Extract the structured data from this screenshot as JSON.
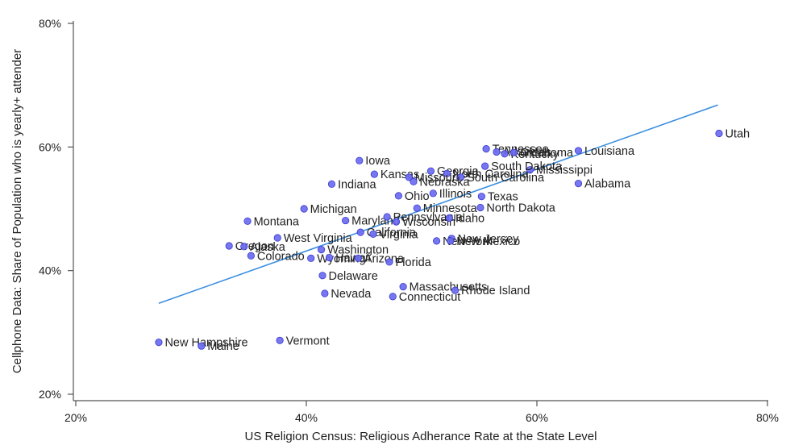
{
  "chart_data": {
    "type": "scatter",
    "xlabel": "US Religion Census: Religious Adherance Rate at the State Level",
    "ylabel": "Cellphone Data: Share of Population who is yearly+ attender",
    "xlim": [
      0.2,
      0.8
    ],
    "ylim": [
      0.2,
      0.8
    ],
    "x_ticks": [
      0.2,
      0.4,
      0.6,
      0.8
    ],
    "y_ticks": [
      0.2,
      0.4,
      0.6,
      0.8
    ],
    "x_tick_labels": [
      "20%",
      "40%",
      "60%",
      "80%"
    ],
    "y_tick_labels": [
      "20%",
      "40%",
      "60%",
      "80%"
    ],
    "grid": false,
    "colors": {
      "point_fill": "#6b6bf0",
      "point_stroke": "#3a3ad0",
      "fit_line": "#3b8fe0",
      "axis": "#555555"
    },
    "fit_line": {
      "x": [
        0.272,
        0.757
      ],
      "y": [
        0.347,
        0.668
      ]
    },
    "points": [
      {
        "label": "Utah",
        "x": 0.758,
        "y": 0.622
      },
      {
        "label": "Louisiana",
        "x": 0.636,
        "y": 0.594
      },
      {
        "label": "Tennessee",
        "x": 0.556,
        "y": 0.597
      },
      {
        "label": "Arkansas",
        "x": 0.565,
        "y": 0.592
      },
      {
        "label": "Kentucky",
        "x": 0.572,
        "y": 0.589
      },
      {
        "label": "Oklahoma",
        "x": 0.58,
        "y": 0.591
      },
      {
        "label": "West Virginia",
        "x": 0.375,
        "y": 0.453
      },
      {
        "label": "Mississippi",
        "x": 0.594,
        "y": 0.563
      },
      {
        "label": "South Dakota",
        "x": 0.555,
        "y": 0.569
      },
      {
        "label": "Alabama",
        "x": 0.636,
        "y": 0.541
      },
      {
        "label": "Iowa",
        "x": 0.446,
        "y": 0.578
      },
      {
        "label": "Kansas",
        "x": 0.459,
        "y": 0.556
      },
      {
        "label": "Georgia",
        "x": 0.508,
        "y": 0.561
      },
      {
        "label": "North Carolina",
        "x": 0.522,
        "y": 0.557
      },
      {
        "label": "Missouri",
        "x": 0.489,
        "y": 0.551
      },
      {
        "label": "South Carolina",
        "x": 0.534,
        "y": 0.551
      },
      {
        "label": "Nebraska",
        "x": 0.493,
        "y": 0.544
      },
      {
        "label": "Indiana",
        "x": 0.422,
        "y": 0.54
      },
      {
        "label": "Ohio",
        "x": 0.48,
        "y": 0.521
      },
      {
        "label": "Illinois",
        "x": 0.51,
        "y": 0.525
      },
      {
        "label": "Texas",
        "x": 0.552,
        "y": 0.52
      },
      {
        "label": "Minnesota",
        "x": 0.496,
        "y": 0.501
      },
      {
        "label": "North Dakota",
        "x": 0.551,
        "y": 0.502
      },
      {
        "label": "Michigan",
        "x": 0.398,
        "y": 0.5
      },
      {
        "label": "Montana",
        "x": 0.349,
        "y": 0.48
      },
      {
        "label": "Maryland",
        "x": 0.434,
        "y": 0.481
      },
      {
        "label": "Pennsylvania",
        "x": 0.47,
        "y": 0.487
      },
      {
        "label": "Wisconsin",
        "x": 0.478,
        "y": 0.479
      },
      {
        "label": "Idaho",
        "x": 0.524,
        "y": 0.485
      },
      {
        "label": "California",
        "x": 0.447,
        "y": 0.462
      },
      {
        "label": "Virginia",
        "x": 0.458,
        "y": 0.459
      },
      {
        "label": "New Jersey",
        "x": 0.526,
        "y": 0.452
      },
      {
        "label": "New York",
        "x": 0.513,
        "y": 0.448
      },
      {
        "label": "New Mexico",
        "x": 0.525,
        "y": 0.448
      },
      {
        "label": "Oregon",
        "x": 0.333,
        "y": 0.44
      },
      {
        "label": "Alaska",
        "x": 0.346,
        "y": 0.439
      },
      {
        "label": "Washington",
        "x": 0.413,
        "y": 0.434
      },
      {
        "label": "Colorado",
        "x": 0.352,
        "y": 0.424
      },
      {
        "label": "Wyoming",
        "x": 0.404,
        "y": 0.42
      },
      {
        "label": "Hawaii",
        "x": 0.42,
        "y": 0.421
      },
      {
        "label": "Arizona",
        "x": 0.445,
        "y": 0.42
      },
      {
        "label": "Florida",
        "x": 0.472,
        "y": 0.414
      },
      {
        "label": "Delaware",
        "x": 0.414,
        "y": 0.392
      },
      {
        "label": "Massachusetts",
        "x": 0.484,
        "y": 0.374
      },
      {
        "label": "Rhode Island",
        "x": 0.529,
        "y": 0.368
      },
      {
        "label": "Connecticut",
        "x": 0.475,
        "y": 0.358
      },
      {
        "label": "Nevada",
        "x": 0.416,
        "y": 0.363
      },
      {
        "label": "Vermont",
        "x": 0.377,
        "y": 0.287
      },
      {
        "label": "New Hampshire",
        "x": 0.272,
        "y": 0.284
      },
      {
        "label": "Maine",
        "x": 0.309,
        "y": 0.278
      }
    ]
  }
}
